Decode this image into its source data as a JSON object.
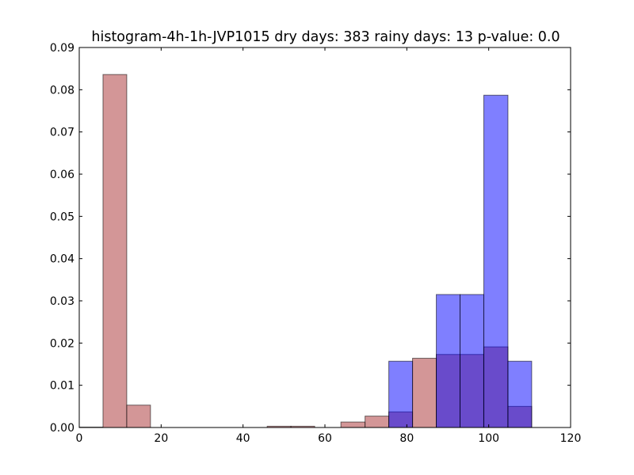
{
  "chart_data": {
    "type": "bar",
    "title": "histogram-4h-1h-JVP1015 dry days: 383 rainy days: 13 p-value: 0.0",
    "xlabel": "",
    "ylabel": "",
    "xlim": [
      0,
      120
    ],
    "ylim": [
      0,
      0.09
    ],
    "xticks": [
      0,
      20,
      40,
      60,
      80,
      100,
      120
    ],
    "yticks": [
      0.0,
      0.01,
      0.02,
      0.03,
      0.04,
      0.05,
      0.06,
      0.07,
      0.08,
      0.09
    ],
    "xtick_labels": [
      "0",
      "20",
      "40",
      "60",
      "80",
      "100",
      "120"
    ],
    "ytick_labels": [
      "0.00",
      "0.01",
      "0.02",
      "0.03",
      "0.04",
      "0.05",
      "0.06",
      "0.07",
      "0.08",
      "0.09"
    ],
    "grid": false,
    "series": [
      {
        "color": "#c0696b",
        "opacity": 0.7,
        "bins": [
          {
            "x0": 0.0,
            "x1": 5.8,
            "value": 0.0001
          },
          {
            "x0": 5.8,
            "x1": 11.6,
            "value": 0.0836
          },
          {
            "x0": 11.6,
            "x1": 17.4,
            "value": 0.0053
          },
          {
            "x0": 45.9,
            "x1": 51.7,
            "value": 0.0003
          },
          {
            "x0": 51.7,
            "x1": 57.5,
            "value": 0.0003
          },
          {
            "x0": 63.9,
            "x1": 69.8,
            "value": 0.0013
          },
          {
            "x0": 69.8,
            "x1": 75.6,
            "value": 0.0027
          },
          {
            "x0": 75.6,
            "x1": 81.4,
            "value": 0.0037
          },
          {
            "x0": 81.4,
            "x1": 87.2,
            "value": 0.0164
          },
          {
            "x0": 87.2,
            "x1": 93.0,
            "value": 0.0173
          },
          {
            "x0": 93.0,
            "x1": 98.8,
            "value": 0.0173
          },
          {
            "x0": 98.8,
            "x1": 104.7,
            "value": 0.0191
          },
          {
            "x0": 104.7,
            "x1": 110.5,
            "value": 0.005
          }
        ]
      },
      {
        "color": "#0000ff",
        "opacity": 0.5,
        "bins": [
          {
            "x0": 75.6,
            "x1": 81.4,
            "value": 0.0157
          },
          {
            "x0": 87.2,
            "x1": 93.0,
            "value": 0.0315
          },
          {
            "x0": 93.0,
            "x1": 98.8,
            "value": 0.0315
          },
          {
            "x0": 98.8,
            "x1": 104.7,
            "value": 0.0787
          },
          {
            "x0": 104.7,
            "x1": 110.5,
            "value": 0.0157
          }
        ]
      }
    ]
  }
}
